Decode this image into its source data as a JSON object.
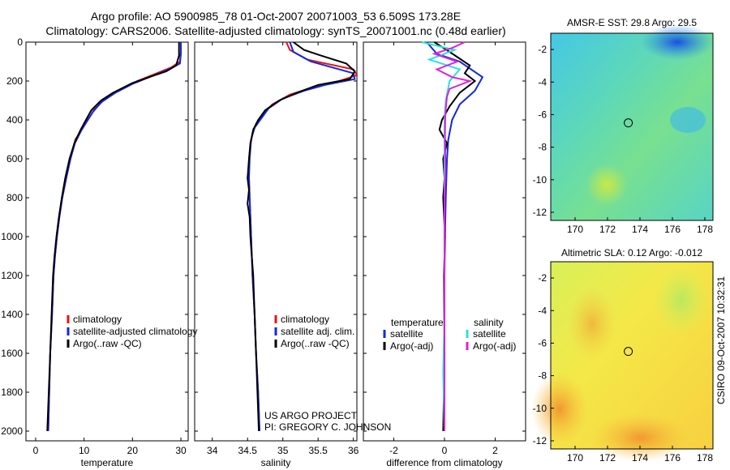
{
  "title_line1": "Argo profile: AO 5900985_78 01-Oct-2007 20071003_53 6.509S 173.28E",
  "title_line2": "Climatology: CARS2006. Satellite-adjusted climatology: synTS_20071001.nc (0.48d earlier)",
  "side_label": "CSIRO 09-Oct-2007 10:32:31",
  "credit_line1": "US ARGO PROJECT",
  "credit_line2": "PI: GREGORY C. JOHNSON",
  "colors": {
    "climatology": "#e8140c",
    "satellite": "#1428d8",
    "argo": "#000000",
    "sat_sal": "#28e0e0",
    "argo_sal": "#e020d8"
  },
  "chart_data": [
    {
      "type": "line",
      "xlabel": "temperature",
      "xlim": [
        -2,
        31.5
      ],
      "ylim": [
        0,
        2050
      ],
      "xticks": [
        0,
        10,
        20,
        30
      ],
      "yticks": [
        0,
        200,
        400,
        600,
        800,
        1000,
        1200,
        1400,
        1600,
        1800,
        2000
      ],
      "legend": [
        "climatology",
        "satellite-adjusted climatology",
        "Argo(..raw -QC)"
      ],
      "series": [
        {
          "name": "climatology",
          "color": "#e8140c",
          "points": [
            [
              30,
              0
            ],
            [
              30,
              50
            ],
            [
              29.8,
              100
            ],
            [
              28,
              130
            ],
            [
              25,
              160
            ],
            [
              21,
              200
            ],
            [
              17,
              250
            ],
            [
              14,
              300
            ],
            [
              12,
              350
            ],
            [
              10.8,
              400
            ],
            [
              9.5,
              450
            ],
            [
              8.2,
              500
            ],
            [
              7.2,
              600
            ],
            [
              6.3,
              700
            ],
            [
              5.5,
              800
            ],
            [
              4.9,
              900
            ],
            [
              4.4,
              1000
            ],
            [
              4,
              1100
            ],
            [
              3.7,
              1200
            ],
            [
              3.4,
              1400
            ],
            [
              3,
              1600
            ],
            [
              2.8,
              1800
            ],
            [
              2.6,
              2000
            ]
          ]
        },
        {
          "name": "satellite-adjusted climatology",
          "color": "#1428d8",
          "points": [
            [
              30,
              0
            ],
            [
              30,
              60
            ],
            [
              29.8,
              110
            ],
            [
              27.5,
              140
            ],
            [
              24,
              175
            ],
            [
              20,
              215
            ],
            [
              16.5,
              260
            ],
            [
              13.5,
              310
            ],
            [
              11.8,
              360
            ],
            [
              10.5,
              410
            ],
            [
              9.3,
              460
            ],
            [
              8.1,
              520
            ],
            [
              7.2,
              600
            ],
            [
              6.3,
              700
            ],
            [
              5.5,
              800
            ],
            [
              4.9,
              900
            ],
            [
              4.4,
              1000
            ],
            [
              4,
              1100
            ],
            [
              3.7,
              1200
            ],
            [
              3.4,
              1400
            ],
            [
              3,
              1600
            ],
            [
              2.8,
              1800
            ],
            [
              2.6,
              2000
            ]
          ]
        },
        {
          "name": "Argo(..raw -QC)",
          "color": "#000000",
          "points": [
            [
              29.6,
              0
            ],
            [
              29.6,
              70
            ],
            [
              29,
              120
            ],
            [
              27,
              150
            ],
            [
              24,
              175
            ],
            [
              20,
              210
            ],
            [
              16,
              260
            ],
            [
              13.5,
              300
            ],
            [
              11.5,
              350
            ],
            [
              10.4,
              400
            ],
            [
              9.3,
              450
            ],
            [
              8,
              520
            ],
            [
              7,
              600
            ],
            [
              6.1,
              700
            ],
            [
              5.4,
              800
            ],
            [
              4.8,
              900
            ],
            [
              4.3,
              1000
            ],
            [
              3.9,
              1100
            ],
            [
              3.6,
              1200
            ],
            [
              3.3,
              1400
            ],
            [
              3,
              1600
            ],
            [
              2.7,
              1800
            ],
            [
              2.4,
              2000
            ]
          ]
        }
      ]
    },
    {
      "type": "line",
      "xlabel": "salinity",
      "xlim": [
        33.75,
        36.05
      ],
      "ylim": [
        0,
        2050
      ],
      "xticks": [
        34,
        34.5,
        35,
        35.5,
        36
      ],
      "yticks": [
        0,
        200,
        400,
        600,
        800,
        1000,
        1200,
        1400,
        1600,
        1800,
        2000
      ],
      "legend": [
        "climatology",
        "satellite adj. clim.",
        "Argo(..raw -QC)"
      ],
      "series": [
        {
          "name": "climatology",
          "color": "#e8140c",
          "points": [
            [
              35.05,
              0
            ],
            [
              35.1,
              40
            ],
            [
              35.35,
              90
            ],
            [
              36,
              140
            ],
            [
              36.05,
              170
            ],
            [
              35.8,
              200
            ],
            [
              35.45,
              230
            ],
            [
              35.1,
              270
            ],
            [
              34.85,
              320
            ],
            [
              34.72,
              370
            ],
            [
              34.62,
              420
            ],
            [
              34.57,
              470
            ],
            [
              34.54,
              530
            ],
            [
              34.52,
              600
            ],
            [
              34.52,
              700
            ],
            [
              34.53,
              800
            ],
            [
              34.54,
              900
            ],
            [
              34.55,
              1000
            ],
            [
              34.57,
              1200
            ],
            [
              34.6,
              1400
            ],
            [
              34.62,
              1600
            ],
            [
              34.65,
              1800
            ],
            [
              34.67,
              2000
            ]
          ]
        },
        {
          "name": "satellite adj. clim.",
          "color": "#1428d8",
          "points": [
            [
              35.1,
              0
            ],
            [
              35.15,
              50
            ],
            [
              35.4,
              100
            ],
            [
              36,
              160
            ],
            [
              36.02,
              190
            ],
            [
              35.6,
              220
            ],
            [
              35.3,
              250
            ],
            [
              35,
              290
            ],
            [
              34.8,
              340
            ],
            [
              34.7,
              390
            ],
            [
              34.6,
              440
            ],
            [
              34.55,
              500
            ],
            [
              34.53,
              600
            ],
            [
              34.52,
              700
            ],
            [
              34.53,
              800
            ],
            [
              34.54,
              900
            ],
            [
              34.55,
              1000
            ],
            [
              34.57,
              1200
            ],
            [
              34.6,
              1400
            ],
            [
              34.62,
              1600
            ],
            [
              34.65,
              1800
            ],
            [
              34.67,
              2000
            ]
          ]
        },
        {
          "name": "Argo(..raw -QC)",
          "color": "#000000",
          "points": [
            [
              35.15,
              0
            ],
            [
              35.3,
              40
            ],
            [
              35.55,
              70
            ],
            [
              35.9,
              110
            ],
            [
              36.02,
              150
            ],
            [
              35.95,
              190
            ],
            [
              35.5,
              220
            ],
            [
              35.2,
              260
            ],
            [
              34.95,
              300
            ],
            [
              34.75,
              350
            ],
            [
              34.65,
              400
            ],
            [
              34.58,
              450
            ],
            [
              34.54,
              520
            ],
            [
              34.52,
              600
            ],
            [
              34.5,
              700
            ],
            [
              34.52,
              760
            ],
            [
              34.5,
              830
            ],
            [
              34.53,
              900
            ],
            [
              34.54,
              1000
            ],
            [
              34.56,
              1100
            ],
            [
              34.58,
              1200
            ],
            [
              34.6,
              1400
            ],
            [
              34.62,
              1600
            ],
            [
              34.64,
              1800
            ],
            [
              34.66,
              2000
            ]
          ]
        }
      ]
    },
    {
      "type": "line",
      "xlabel": "difference from climatology",
      "xlim": [
        -3.2,
        3.2
      ],
      "ylim": [
        0,
        2050
      ],
      "xticks": [
        -2,
        0,
        2
      ],
      "yticks": [
        0,
        200,
        400,
        600,
        800,
        1000,
        1200,
        1400,
        1600,
        1800,
        2000
      ],
      "legend_headers": [
        "temperature",
        "salinity"
      ],
      "legend": [
        "satellite",
        "Argo(-adj)",
        "satellite",
        "Argo(-adj)"
      ],
      "series": [
        {
          "name": "temperature satellite",
          "color": "#1428d8",
          "points": [
            [
              -0.7,
              0
            ],
            [
              -0.3,
              60
            ],
            [
              0.6,
              100
            ],
            [
              1.5,
              180
            ],
            [
              1.2,
              250
            ],
            [
              0.6,
              320
            ],
            [
              0.3,
              400
            ],
            [
              0.15,
              500
            ],
            [
              0.1,
              600
            ],
            [
              0.05,
              800
            ],
            [
              0.02,
              1000
            ],
            [
              0,
              1200
            ],
            [
              0,
              2000
            ]
          ]
        },
        {
          "name": "temperature Argo(-adj)",
          "color": "#000000",
          "points": [
            [
              -0.4,
              0
            ],
            [
              0.2,
              50
            ],
            [
              1.0,
              120
            ],
            [
              0.8,
              160
            ],
            [
              1.2,
              200
            ],
            [
              0.6,
              260
            ],
            [
              0.2,
              330
            ],
            [
              -0.1,
              400
            ],
            [
              -0.2,
              450
            ],
            [
              0.1,
              520
            ],
            [
              -0.05,
              600
            ],
            [
              0,
              700
            ],
            [
              -0.05,
              800
            ],
            [
              0.02,
              1000
            ],
            [
              -0.02,
              1200
            ],
            [
              0,
              1600
            ],
            [
              -0.05,
              2000
            ]
          ]
        },
        {
          "name": "salinity satellite",
          "color": "#28e0e0",
          "points": [
            [
              -0.9,
              0
            ],
            [
              0.4,
              40
            ],
            [
              -0.6,
              90
            ],
            [
              0.6,
              140
            ],
            [
              0.2,
              200
            ],
            [
              0.05,
              300
            ],
            [
              0,
              400
            ],
            [
              0,
              600
            ],
            [
              0,
              1000
            ],
            [
              0,
              1400
            ],
            [
              -0.05,
              1700
            ],
            [
              0,
              2000
            ]
          ]
        },
        {
          "name": "salinity Argo(-adj)",
          "color": "#e020d8",
          "points": [
            [
              0.8,
              0
            ],
            [
              0.3,
              30
            ],
            [
              -0.4,
              60
            ],
            [
              0.5,
              100
            ],
            [
              -0.3,
              140
            ],
            [
              0.3,
              180
            ],
            [
              1.0,
              200
            ],
            [
              0.2,
              240
            ],
            [
              0.1,
              280
            ],
            [
              0.05,
              340
            ],
            [
              0.03,
              400
            ],
            [
              0.02,
              500
            ],
            [
              0.04,
              650
            ],
            [
              0,
              800
            ],
            [
              0,
              1200
            ],
            [
              0,
              2000
            ]
          ]
        }
      ]
    },
    {
      "type": "heatmap",
      "title": "AMSR-E SST: 29.8 Argo: 29.5",
      "xlim": [
        168.5,
        178.5
      ],
      "ylim": [
        -12.5,
        -1
      ],
      "xticks": [
        170,
        172,
        174,
        176,
        178
      ],
      "yticks": [
        -2,
        -4,
        -6,
        -8,
        -10,
        -12
      ],
      "marker": {
        "lon": 173.28,
        "lat": -6.509
      }
    },
    {
      "type": "heatmap",
      "title": "Altimetric SLA: 0.12 Argo: -0.012",
      "xlim": [
        168.5,
        178.5
      ],
      "ylim": [
        -12.5,
        -1
      ],
      "xticks": [
        170,
        172,
        174,
        176,
        178
      ],
      "yticks": [
        -2,
        -4,
        -6,
        -8,
        -10,
        -12
      ],
      "marker": {
        "lon": 173.28,
        "lat": -6.509
      }
    }
  ]
}
